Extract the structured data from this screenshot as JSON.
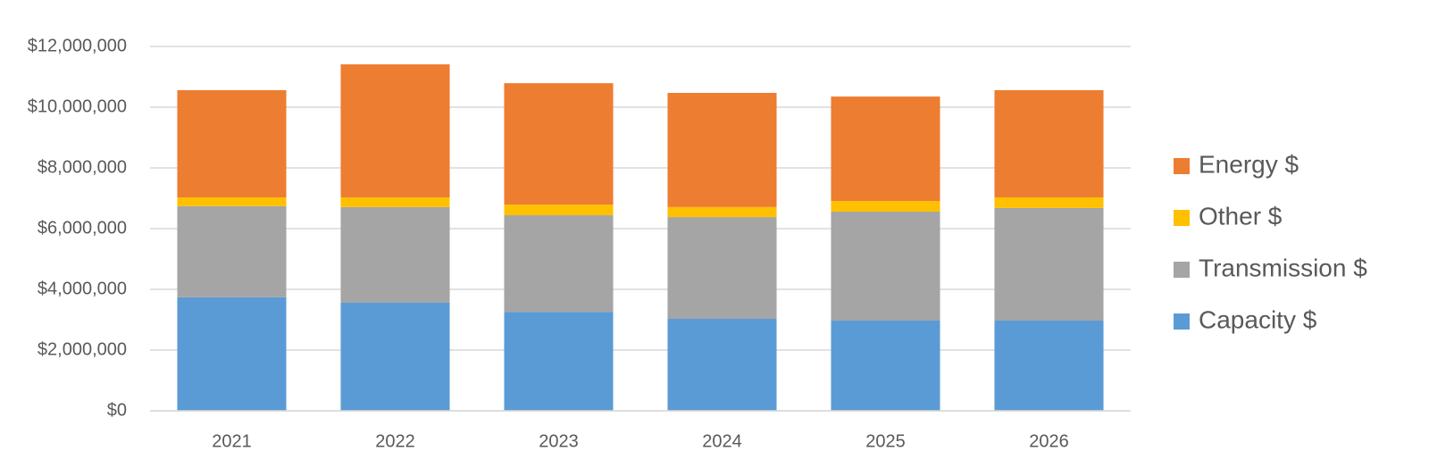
{
  "chart_data": {
    "type": "stacked_bar",
    "categories": [
      "2021",
      "2022",
      "2023",
      "2024",
      "2025",
      "2026"
    ],
    "series": [
      {
        "name": "Capacity $",
        "color": "#5b9bd5",
        "values": [
          3740000,
          3560000,
          3260000,
          3030000,
          2970000,
          2970000
        ]
      },
      {
        "name": "Transmission $",
        "color": "#a5a5a5",
        "values": [
          3000000,
          3150000,
          3180000,
          3350000,
          3590000,
          3710000
        ]
      },
      {
        "name": "Other $",
        "color": "#ffc000",
        "values": [
          290000,
          320000,
          350000,
          330000,
          350000,
          350000
        ]
      },
      {
        "name": "Energy $",
        "color": "#ed7d31",
        "values": [
          3530000,
          4380000,
          4000000,
          3760000,
          3440000,
          3530000
        ]
      }
    ],
    "ylim": [
      0,
      12000000
    ],
    "yticks": [
      {
        "value": 0,
        "label": "$0"
      },
      {
        "value": 2000000,
        "label": "$2,000,000"
      },
      {
        "value": 4000000,
        "label": "$4,000,000"
      },
      {
        "value": 6000000,
        "label": "$6,000,000"
      },
      {
        "value": 8000000,
        "label": "$8,000,000"
      },
      {
        "value": 10000000,
        "label": "$10,000,000"
      },
      {
        "value": 12000000,
        "label": "$12,000,000"
      }
    ],
    "grid": true,
    "legend": "right"
  }
}
